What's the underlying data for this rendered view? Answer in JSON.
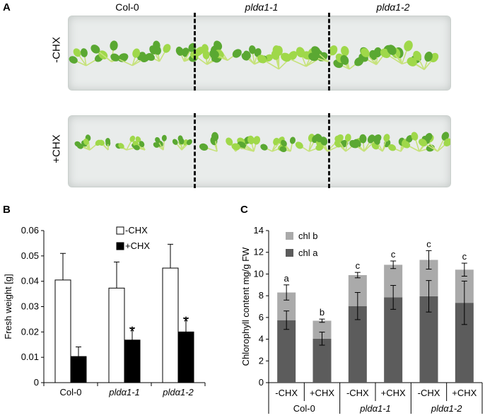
{
  "panels": {
    "a": "A",
    "b": "B",
    "c": "C"
  },
  "photo": {
    "genotypes": [
      "Col-0",
      "pldα1-1",
      "pldα1-2"
    ],
    "rows": [
      "-CHX",
      "+CHX"
    ],
    "colors": {
      "seedling_light": "#9fd84a",
      "seedling_dark": "#5aa832",
      "tray": "#e9eceb"
    }
  },
  "chart_data": [
    {
      "type": "bar",
      "panel": "B",
      "categories": [
        "Col-0",
        "pldα1-1",
        "pldα1-2"
      ],
      "category_italic": [
        false,
        true,
        true
      ],
      "ylabel": "Fresh weight [g]",
      "ylim": [
        0,
        0.06
      ],
      "yticks": [
        0,
        0.01,
        0.02,
        0.03,
        0.04,
        0.05,
        0.06
      ],
      "ytick_labels": [
        "0",
        "0.01",
        "0.02",
        "0.03",
        "0.04",
        "0.05",
        "0.06"
      ],
      "legend_placement": "top-right",
      "series": [
        {
          "name": "-CHX",
          "color": "#ffffff",
          "values": [
            0.0405,
            0.0373,
            0.0452
          ],
          "errors": [
            0.0105,
            0.0103,
            0.0094
          ],
          "sig": [
            "",
            "",
            ""
          ]
        },
        {
          "name": "+CHX",
          "color": "#000000",
          "values": [
            0.0103,
            0.0168,
            0.02
          ],
          "errors": [
            0.0038,
            0.0048,
            0.0055
          ],
          "sig": [
            "",
            "*",
            "*"
          ]
        }
      ]
    },
    {
      "type": "bar",
      "stacked": true,
      "panel": "C",
      "categories": [
        "-CHX",
        "+CHX",
        "-CHX",
        "+CHX",
        "-CHX",
        "+CHX"
      ],
      "groups": [
        {
          "label": "Col-0",
          "italic": false
        },
        {
          "label": "pldα1-1",
          "italic": true
        },
        {
          "label": "pldα1-2",
          "italic": true
        }
      ],
      "ylabel": "Chlorophyll content mg/g FW",
      "ylim": [
        0,
        14
      ],
      "yticks": [
        0,
        2,
        4,
        6,
        8,
        10,
        12,
        14
      ],
      "ytick_labels": [
        "0",
        "2",
        "4",
        "6",
        "8",
        "10",
        "12",
        "14"
      ],
      "legend_placement": "top-left",
      "annotations": [
        "a",
        "b",
        "c",
        "c",
        "c",
        "c"
      ],
      "series": [
        {
          "name": "chl a",
          "color": "#5c5c5c",
          "values": [
            5.75,
            4.05,
            7.05,
            7.85,
            7.95,
            7.35
          ],
          "errors": [
            0.85,
            0.6,
            1.25,
            1.1,
            1.45,
            2.0
          ]
        },
        {
          "name": "chl b",
          "color": "#aaaaaa",
          "values": [
            2.55,
            1.65,
            2.85,
            3.0,
            3.35,
            3.05
          ],
          "errors": [
            0.7,
            0.15,
            0.25,
            0.35,
            0.85,
            0.6
          ]
        }
      ]
    }
  ]
}
